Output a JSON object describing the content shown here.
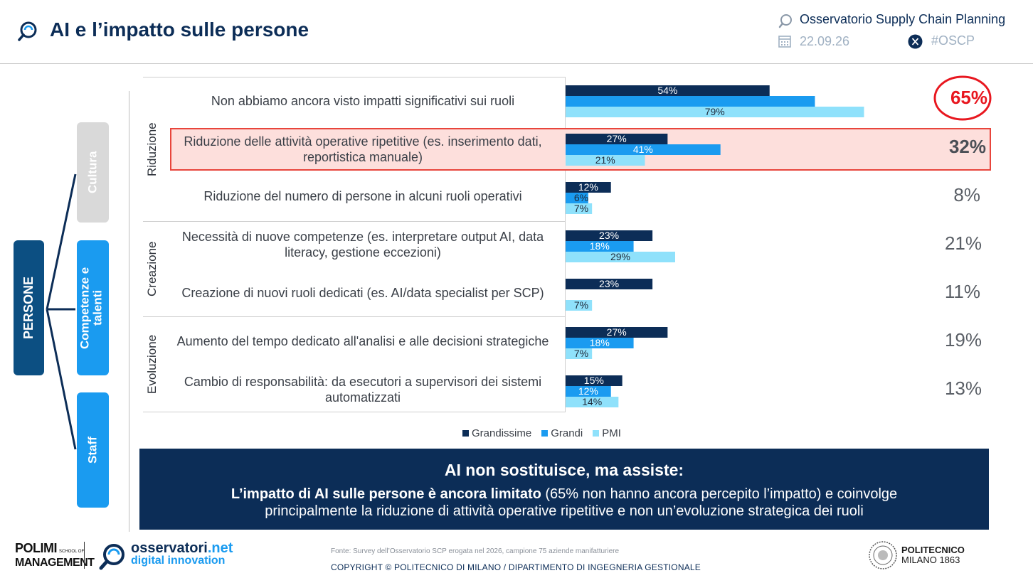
{
  "header": {
    "title": "AI e l’impatto sulle persone",
    "observatory": "Osservatorio Supply Chain Planning",
    "date": "22.09.26",
    "hashtag": "#OSCP"
  },
  "sidebar": {
    "main_label": "PERSONE",
    "pills": [
      {
        "label": "Cultura",
        "color": "#d9d9d9"
      },
      {
        "label": "Competenze e talenti",
        "color": "#1a9bf0"
      },
      {
        "label": "Staff",
        "color": "#1a9bf0"
      }
    ],
    "main_color": "#0c4f82"
  },
  "chart_data": {
    "type": "bar",
    "orientation": "horizontal",
    "groups": [
      {
        "label": "Riduzione",
        "rows": [
          0,
          1,
          2
        ]
      },
      {
        "label": "Creazione",
        "rows": [
          3,
          4
        ]
      },
      {
        "label": "Evoluzione",
        "rows": [
          5,
          6
        ]
      }
    ],
    "categories": [
      "Non abbiamo ancora visto impatti significativi sui ruoli",
      "Riduzione delle attività operative ripetitive (es. inserimento dati, reportistica manuale)",
      "Riduzione del numero di persone in alcuni ruoli operativi",
      "Necessità di nuove competenze (es. interpretare output AI, data literacy, gestione eccezioni)",
      "Creazione di nuovi ruoli dedicati (es. AI/data specialist per SCP)",
      "Aumento del tempo dedicato all'analisi e alle decisioni strategiche",
      "Cambio di responsabilità: da esecutori a supervisori dei sistemi automatizzati"
    ],
    "series": [
      {
        "name": "Grandissime",
        "color": "#0c2d57",
        "values": [
          54,
          27,
          12,
          23,
          23,
          27,
          15
        ]
      },
      {
        "name": "Grandi",
        "color": "#1a9bf0",
        "values": [
          66,
          41,
          6,
          18,
          0,
          18,
          12
        ]
      },
      {
        "name": "PMI",
        "color": "#8fe1fb",
        "values": [
          79,
          21,
          7,
          29,
          7,
          7,
          14
        ]
      }
    ],
    "value_labels": [
      [
        "54%",
        "",
        "79%"
      ],
      [
        "27%",
        "41%",
        "21%"
      ],
      [
        "12%",
        "6%",
        "7%"
      ],
      [
        "23%",
        "18%",
        "29%"
      ],
      [
        "23%",
        "",
        "7%"
      ],
      [
        "27%",
        "18%",
        "7%"
      ],
      [
        "15%",
        "12%",
        "14%"
      ]
    ],
    "totals": [
      "65%",
      "32%",
      "8%",
      "21%",
      "11%",
      "19%",
      "13%"
    ],
    "highlight_row": 1,
    "highlight_color": "#e8453c",
    "xlim": [
      0,
      100
    ]
  },
  "insight": {
    "title": "AI non sostituisce, ma assiste:",
    "bold_lead": "L’impatto di AI sulle persone è ancora limitato",
    "rest_line1": " (65% non hanno ancora percepito l’impatto) e coinvolge",
    "line2": "principalmente la riduzione di attività operative ripetitive e non un’evoluzione strategica dei ruoli"
  },
  "footer": {
    "polimi_line1": "POLIMI",
    "polimi_school": "SCHOOL OF",
    "polimi_line2": "MANAGEMENT",
    "osservatori_name": "osservatori",
    "osservatori_tld": ".net",
    "osservatori_sub": "digital innovation",
    "source": "Fonte: Survey dell’Osservatorio SCP erogata nel 2026, campione 75 aziende manifatturiere",
    "copyright": "COPYRIGHT © POLITECNICO DI MILANO / DIPARTIMENTO DI INGEGNERIA GESTIONALE",
    "politecnico_line1": "POLITECNICO",
    "politecnico_line2": "MILANO 1863"
  }
}
